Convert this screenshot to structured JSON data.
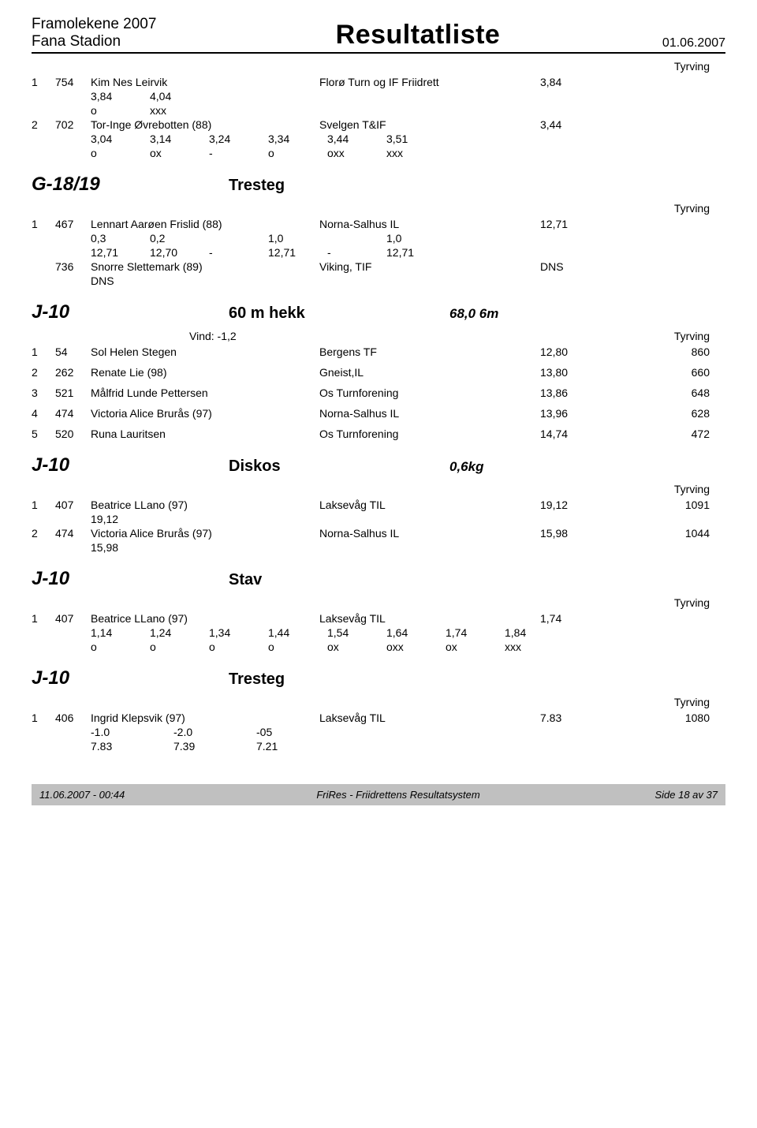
{
  "header": {
    "meet": "Framolekene 2007",
    "stadium": "Fana Stadion",
    "title": "Resultatliste",
    "date": "01.06.2007"
  },
  "tyrving_label": "Tyrving",
  "top_results": [
    {
      "place": "1",
      "bib": "754",
      "name": "Kim Nes Leirvik",
      "club": "Florø Turn og IF Friidrett",
      "result": "3,84",
      "sub1": [
        "3,84",
        "4,04"
      ],
      "sub2": [
        "o",
        "xxx"
      ]
    },
    {
      "place": "2",
      "bib": "702",
      "name": "Tor-Inge Øvrebotten (88)",
      "club": "Svelgen T&IF",
      "result": "3,44",
      "sub1": [
        "3,04",
        "3,14",
        "3,24",
        "3,34",
        "3,44",
        "3,51"
      ],
      "sub2": [
        "o",
        "ox",
        "-",
        "o",
        "oxx",
        "xxx"
      ]
    }
  ],
  "event_g1819": {
    "class": "G-18/19",
    "name": "Tresteg",
    "spec": "",
    "rows": [
      {
        "place": "1",
        "bib": "467",
        "name": "Lennart Aarøen Frislid (88)",
        "club": "Norna-Salhus IL",
        "result": "12,71",
        "sub1": [
          "0,3",
          "0,2",
          "",
          "1,0",
          "",
          "1,0"
        ],
        "sub2": [
          "12,71",
          "12,70",
          "-",
          "12,71",
          "-",
          "12,71"
        ]
      },
      {
        "place": "",
        "bib": "736",
        "name": "Snorre Slettemark (89)",
        "club": "Viking, TIF",
        "result": "DNS",
        "sub1": [
          "DNS"
        ]
      }
    ]
  },
  "event_j10_hekk": {
    "class": "J-10",
    "name": "60 m hekk",
    "spec": "68,0 6m",
    "wind": "Vind: -1,2",
    "rows": [
      {
        "place": "1",
        "bib": "54",
        "name": "Sol Helen Stegen",
        "club": "Bergens TF",
        "result": "12,80",
        "score": "860"
      },
      {
        "place": "2",
        "bib": "262",
        "name": "Renate Lie (98)",
        "club": "Gneist,IL",
        "result": "13,80",
        "score": "660"
      },
      {
        "place": "3",
        "bib": "521",
        "name": "Målfrid Lunde Pettersen",
        "club": "Os Turnforening",
        "result": "13,86",
        "score": "648"
      },
      {
        "place": "4",
        "bib": "474",
        "name": "Victoria Alice Brurås (97)",
        "club": "Norna-Salhus IL",
        "result": "13,96",
        "score": "628"
      },
      {
        "place": "5",
        "bib": "520",
        "name": "Runa Lauritsen",
        "club": "Os Turnforening",
        "result": "14,74",
        "score": "472"
      }
    ]
  },
  "event_j10_diskos": {
    "class": "J-10",
    "name": "Diskos",
    "spec": "0,6kg",
    "rows": [
      {
        "place": "1",
        "bib": "407",
        "name": "Beatrice LLano (97)",
        "club": "Laksevåg TIL",
        "result": "19,12",
        "score": "1091",
        "sub": "19,12"
      },
      {
        "place": "2",
        "bib": "474",
        "name": "Victoria Alice Brurås (97)",
        "club": "Norna-Salhus IL",
        "result": "15,98",
        "score": "1044",
        "sub": "15,98"
      }
    ]
  },
  "event_j10_stav": {
    "class": "J-10",
    "name": "Stav",
    "spec": "",
    "rows": [
      {
        "place": "1",
        "bib": "407",
        "name": "Beatrice LLano (97)",
        "club": "Laksevåg TIL",
        "result": "1,74",
        "sub1": [
          "1,14",
          "1,24",
          "1,34",
          "1,44",
          "1,54",
          "1,64",
          "1,74",
          "1,84"
        ],
        "sub2": [
          "o",
          "o",
          "o",
          "o",
          "ox",
          "oxx",
          "ox",
          "xxx"
        ]
      }
    ]
  },
  "event_j10_tresteg": {
    "class": "J-10",
    "name": "Tresteg",
    "spec": "",
    "rows": [
      {
        "place": "1",
        "bib": "406",
        "name": "Ingrid Klepsvik (97)",
        "club": "Laksevåg TIL",
        "result": "7.83",
        "score": "1080",
        "sub1": [
          "-1.0",
          "-2.0",
          "-05"
        ],
        "sub2": [
          "7.83",
          "7.39",
          "7.21"
        ]
      }
    ]
  },
  "footer": {
    "left": "11.06.2007 - 00:44",
    "center": "FriRes - Friidrettens Resultatsystem",
    "right": "Side 18 av 37"
  }
}
